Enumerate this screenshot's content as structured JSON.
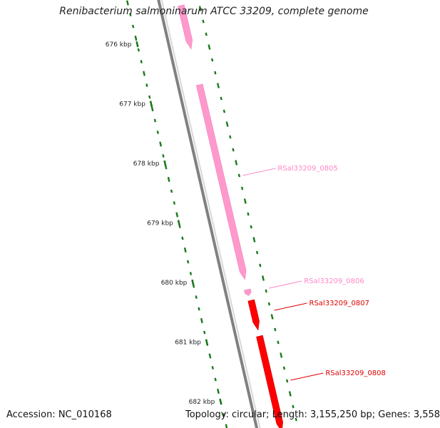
{
  "title": "Renibacterium salmoninarum ATCC 33209, complete genome",
  "footer": {
    "accession": "Accession: NC_010168",
    "summary": "Topology: circular; Length: 3,155,250 bp; Genes: 3,558"
  },
  "colors": {
    "background": "#ffffff",
    "backbone": "#808080",
    "tick": "#1a7a1a",
    "gene_pink": "#ff99cc",
    "gene_red": "#ff0000",
    "label_pink": "#ff88c8",
    "label_red": "#e00000"
  },
  "tick_labels": [
    "676 kbp",
    "677 kbp",
    "678 kbp",
    "679 kbp",
    "680 kbp",
    "681 kbp",
    "682 kbp"
  ],
  "genes": [
    {
      "label": "",
      "color": "pink",
      "start_kbp": 675.35,
      "end_kbp": 676.08
    },
    {
      "label": "RSal33209_0805",
      "color": "pink",
      "start_kbp": 676.68,
      "end_kbp": 679.95
    },
    {
      "label": "RSal33209_0806",
      "color": "pink",
      "start_kbp": 680.12,
      "end_kbp": 680.22
    },
    {
      "label": "RSal33209_0807",
      "color": "red",
      "start_kbp": 680.3,
      "end_kbp": 680.8
    },
    {
      "label": "RSal33209_0808",
      "color": "red",
      "start_kbp": 680.9,
      "end_kbp": 682.5
    }
  ]
}
